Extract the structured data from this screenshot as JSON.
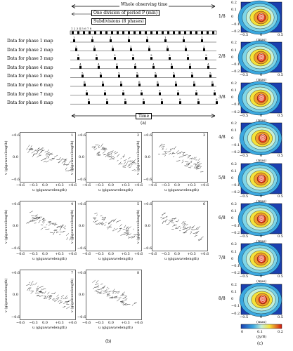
{
  "figure_a": {
    "whole_time": "Whole observing time",
    "period": "One division of period P (min)",
    "subdiv": "Subdivisions (8 phases)",
    "tick_numbers": "1 2 3 4 5 6 7 8",
    "rows": [
      {
        "label": "Data for phase 1 map",
        "num": "1"
      },
      {
        "label": "Data for phase 2 map",
        "num": "2"
      },
      {
        "label": "Data for phase 3 map",
        "num": "3"
      },
      {
        "label": "Data for phase 4 map",
        "num": "4"
      },
      {
        "label": "Data for phase 5 map",
        "num": "5"
      },
      {
        "label": "Data for phase 6 map",
        "num": "6"
      },
      {
        "label": "Data for phase 7 map",
        "num": "7"
      },
      {
        "label": "Data for phase 8 map",
        "num": "8"
      }
    ],
    "time_label": "Time",
    "caption": "(a)"
  },
  "figure_b": {
    "ylabel": "v (gigawavelength)",
    "xlabel": "u (gigawavelength)",
    "ytick_top": "+0.6",
    "ytick_mid": "0.0",
    "ytick_bot": "−0.6",
    "xticks": [
      "−0.6",
      "−0.3",
      "0.0",
      "+0.3",
      "+0.6"
    ],
    "panels": [
      "1",
      "2",
      "3",
      "4",
      "5",
      "6",
      "7",
      "8"
    ],
    "caption": "(b)"
  },
  "figure_c": {
    "phases": [
      "1/8",
      "2/8",
      "3/8",
      "4/8",
      "5/8",
      "6/8",
      "7/8",
      "8/8"
    ],
    "yticks": [
      "0.2",
      "0.1",
      "0",
      "−0.1",
      "−0.2"
    ],
    "xticks": [
      "−0.5",
      "0",
      "0.5"
    ],
    "xlabel": "(mas)",
    "colorbar_ticks": [
      "0",
      "0.1",
      "0.2"
    ],
    "colorbar_label": "(Jy/B)",
    "caption": "(c)",
    "colors": {
      "outer": "#1a3fb0",
      "mid": "#7fd6e8",
      "warm": "#f5e23a",
      "hot": "#e23a1e"
    }
  }
}
